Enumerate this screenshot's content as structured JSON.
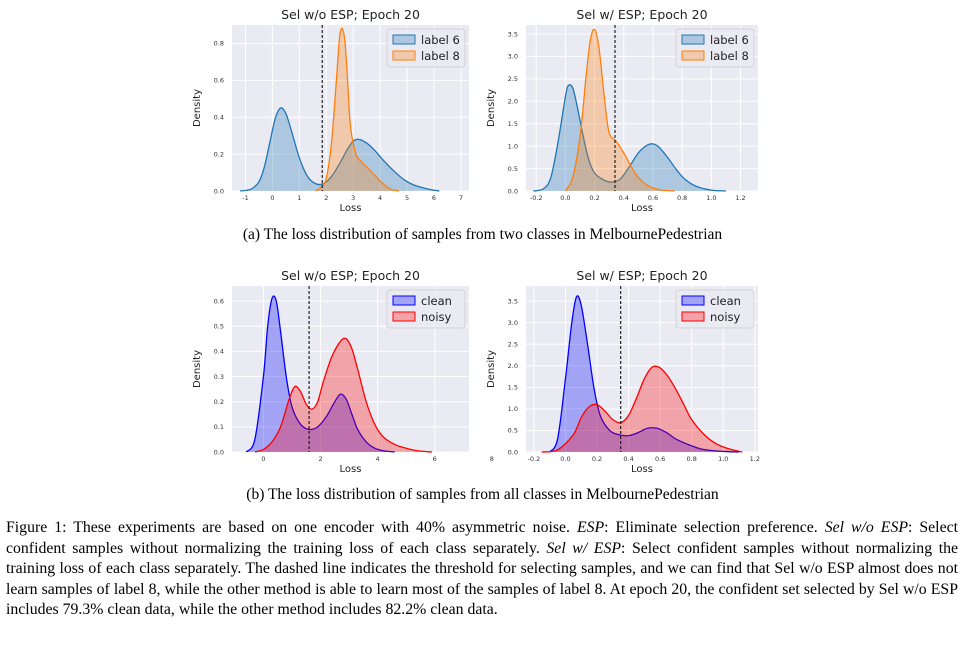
{
  "chart_data": [
    {
      "type": "area",
      "title": "Sel w/o ESP; Epoch 20",
      "xlabel": "Loss",
      "ylabel": "Density",
      "xlim": [
        -1.5,
        7.3
      ],
      "ylim": [
        0,
        0.9
      ],
      "xticks": [
        "-1",
        "0",
        "1",
        "2",
        "3",
        "4",
        "5",
        "6",
        "7"
      ],
      "xtick_values": [
        -1,
        0,
        1,
        2,
        3,
        4,
        5,
        6,
        7
      ],
      "yticks": [
        "0.0",
        "0.2",
        "0.4",
        "0.6",
        "0.8"
      ],
      "ytick_values": [
        0,
        0.2,
        0.4,
        0.6,
        0.8
      ],
      "threshold": 1.85,
      "legend_position": "top-right",
      "grid": true,
      "series": [
        {
          "name": "label 6",
          "color": "#1f77b4",
          "x": [
            -1.2,
            -0.8,
            -0.5,
            -0.3,
            -0.1,
            0.1,
            0.3,
            0.5,
            0.7,
            1.0,
            1.3,
            1.6,
            1.9,
            2.2,
            2.5,
            2.8,
            3.0,
            3.2,
            3.5,
            3.8,
            4.1,
            4.5,
            4.9,
            5.3,
            5.8,
            6.2
          ],
          "y": [
            0.0,
            0.01,
            0.05,
            0.13,
            0.26,
            0.39,
            0.45,
            0.42,
            0.33,
            0.18,
            0.08,
            0.04,
            0.04,
            0.08,
            0.15,
            0.23,
            0.27,
            0.28,
            0.26,
            0.22,
            0.17,
            0.11,
            0.06,
            0.03,
            0.01,
            0.0
          ]
        },
        {
          "name": "label 8",
          "color": "#ff7f0e",
          "x": [
            1.6,
            1.8,
            2.0,
            2.2,
            2.4,
            2.5,
            2.6,
            2.7,
            2.8,
            2.9,
            3.1,
            3.3,
            3.5,
            3.7,
            3.9,
            4.1,
            4.4,
            4.7
          ],
          "y": [
            0.0,
            0.02,
            0.07,
            0.27,
            0.65,
            0.84,
            0.88,
            0.8,
            0.58,
            0.35,
            0.2,
            0.16,
            0.13,
            0.1,
            0.07,
            0.04,
            0.01,
            0.0
          ]
        }
      ]
    },
    {
      "type": "area",
      "title": "Sel w/ ESP; Epoch 20",
      "xlabel": "Loss",
      "ylabel": "Density",
      "xlim": [
        -0.27,
        1.32
      ],
      "ylim": [
        0,
        3.7
      ],
      "xticks": [
        "-0.2",
        "0.0",
        "0.2",
        "0.4",
        "0.6",
        "0.8",
        "1.0",
        "1.2"
      ],
      "xtick_values": [
        -0.2,
        0,
        0.2,
        0.4,
        0.6,
        0.8,
        1.0,
        1.2
      ],
      "yticks": [
        "0.0",
        "0.5",
        "1.0",
        "1.5",
        "2.0",
        "2.5",
        "3.0",
        "3.5"
      ],
      "ytick_values": [
        0,
        0.5,
        1.0,
        1.5,
        2.0,
        2.5,
        3.0,
        3.5
      ],
      "threshold": 0.34,
      "legend_position": "top-right",
      "grid": true,
      "series": [
        {
          "name": "label 6",
          "color": "#1f77b4",
          "x": [
            -0.22,
            -0.15,
            -0.1,
            -0.05,
            0.0,
            0.02,
            0.05,
            0.08,
            0.12,
            0.16,
            0.2,
            0.26,
            0.32,
            0.38,
            0.44,
            0.5,
            0.56,
            0.6,
            0.64,
            0.7,
            0.76,
            0.82,
            0.9,
            1.0,
            1.1
          ],
          "y": [
            0.0,
            0.05,
            0.3,
            1.1,
            2.1,
            2.35,
            2.3,
            1.9,
            1.25,
            0.7,
            0.4,
            0.25,
            0.2,
            0.28,
            0.55,
            0.85,
            1.02,
            1.05,
            0.98,
            0.75,
            0.48,
            0.26,
            0.1,
            0.02,
            0.0
          ]
        },
        {
          "name": "label 8",
          "color": "#ff7f0e",
          "x": [
            0.0,
            0.05,
            0.1,
            0.14,
            0.17,
            0.2,
            0.23,
            0.27,
            0.3,
            0.35,
            0.4,
            0.45,
            0.5,
            0.55,
            0.6,
            0.66,
            0.75
          ],
          "y": [
            0.0,
            0.3,
            1.2,
            2.5,
            3.35,
            3.6,
            3.2,
            2.0,
            1.3,
            1.1,
            0.85,
            0.55,
            0.3,
            0.15,
            0.07,
            0.02,
            0.0
          ]
        }
      ]
    },
    {
      "type": "area",
      "title": "Sel w/o ESP; Epoch 20",
      "xlabel": "Loss",
      "ylabel": "Density",
      "xlim": [
        -1.1,
        7.2
      ],
      "ylim": [
        0,
        0.66
      ],
      "xticks": [
        "0",
        "2",
        "4",
        "6",
        "8"
      ],
      "xtick_values": [
        0,
        2,
        4,
        6,
        8
      ],
      "yticks": [
        "0.0",
        "0.1",
        "0.2",
        "0.3",
        "0.4",
        "0.5",
        "0.6"
      ],
      "ytick_values": [
        0,
        0.1,
        0.2,
        0.3,
        0.4,
        0.5,
        0.6
      ],
      "threshold": 1.6,
      "legend_position": "top-right",
      "grid": true,
      "series": [
        {
          "name": "clean",
          "color": "#0000ff",
          "x": [
            -0.6,
            -0.3,
            0.0,
            0.15,
            0.3,
            0.45,
            0.6,
            0.8,
            1.0,
            1.3,
            1.6,
            1.9,
            2.2,
            2.5,
            2.7,
            2.9,
            3.1,
            3.3,
            3.6,
            3.9,
            4.2,
            4.6
          ],
          "y": [
            0.0,
            0.05,
            0.3,
            0.5,
            0.61,
            0.6,
            0.48,
            0.3,
            0.18,
            0.11,
            0.09,
            0.1,
            0.14,
            0.2,
            0.23,
            0.21,
            0.15,
            0.09,
            0.04,
            0.015,
            0.005,
            0.0
          ]
        },
        {
          "name": "noisy",
          "color": "#ff0000",
          "x": [
            -0.3,
            0.0,
            0.3,
            0.6,
            0.9,
            1.1,
            1.3,
            1.5,
            1.7,
            1.9,
            2.1,
            2.4,
            2.7,
            2.9,
            3.1,
            3.3,
            3.6,
            3.9,
            4.2,
            4.6,
            5.0,
            5.4,
            5.9
          ],
          "y": [
            0.0,
            0.01,
            0.04,
            0.1,
            0.21,
            0.26,
            0.24,
            0.19,
            0.17,
            0.2,
            0.28,
            0.38,
            0.44,
            0.45,
            0.41,
            0.33,
            0.2,
            0.11,
            0.06,
            0.03,
            0.015,
            0.005,
            0.0
          ]
        }
      ]
    },
    {
      "type": "area",
      "title": "Sel w/ ESP; Epoch 20",
      "xlabel": "Loss",
      "ylabel": "Density",
      "xlim": [
        -0.25,
        1.22
      ],
      "ylim": [
        0,
        3.85
      ],
      "xticks": [
        "-0.2",
        "0.0",
        "0.2",
        "0.4",
        "0.6",
        "0.8",
        "1.0",
        "1.2"
      ],
      "xtick_values": [
        -0.2,
        0,
        0.2,
        0.4,
        0.6,
        0.8,
        1.0,
        1.2
      ],
      "yticks": [
        "0.0",
        "0.5",
        "1.0",
        "1.5",
        "2.0",
        "2.5",
        "3.0",
        "3.5"
      ],
      "ytick_values": [
        0,
        0.5,
        1.0,
        1.5,
        2.0,
        2.5,
        3.0,
        3.5
      ],
      "threshold": 0.35,
      "legend_position": "top-right",
      "grid": true,
      "series": [
        {
          "name": "clean",
          "color": "#0000ff",
          "x": [
            -0.1,
            -0.05,
            0.0,
            0.04,
            0.07,
            0.1,
            0.14,
            0.18,
            0.22,
            0.28,
            0.34,
            0.4,
            0.46,
            0.52,
            0.58,
            0.64,
            0.7,
            0.78,
            0.86,
            0.94,
            1.02,
            1.1
          ],
          "y": [
            0.0,
            0.3,
            1.7,
            3.0,
            3.6,
            3.4,
            2.5,
            1.5,
            0.85,
            0.5,
            0.4,
            0.38,
            0.45,
            0.55,
            0.55,
            0.45,
            0.3,
            0.17,
            0.07,
            0.03,
            0.01,
            0.0
          ]
        },
        {
          "name": "noisy",
          "color": "#ff0000",
          "x": [
            -0.15,
            -0.05,
            0.05,
            0.1,
            0.15,
            0.2,
            0.25,
            0.3,
            0.35,
            0.4,
            0.45,
            0.5,
            0.55,
            0.6,
            0.65,
            0.7,
            0.75,
            0.8,
            0.88,
            0.96,
            1.04,
            1.12
          ],
          "y": [
            0.0,
            0.05,
            0.4,
            0.8,
            1.05,
            1.1,
            0.95,
            0.75,
            0.68,
            0.85,
            1.25,
            1.7,
            1.97,
            1.95,
            1.75,
            1.45,
            1.1,
            0.75,
            0.4,
            0.18,
            0.07,
            0.0
          ]
        }
      ]
    }
  ],
  "subcaptions": {
    "a": "(a) The loss distribution of samples from two classes in MelbournePedestrian",
    "b": "(b) The loss distribution of samples from all classes in MelbournePedestrian"
  },
  "figure_caption": {
    "p1": "Figure 1: These experiments are based on one encoder with 40% asymmetric noise. ",
    "esp": "ESP",
    "p2": ": Eliminate selection preference. ",
    "selwo": "Sel w/o ESP",
    "p3": ": Select confident samples without normalizing the training loss of each class separately. ",
    "selw": "Sel w/ ESP",
    "p4": ": Select confident samples without normalizing the training loss of each class separately. The dashed line indicates the threshold for selecting samples, and we can find that Sel w/o ESP almost does not learn samples of label 8, while the other method is able to learn most of the samples of label 8. At epoch 20, the confident set selected by Sel w/o ESP includes 79.3% clean data, while the other method includes 82.2% clean data."
  }
}
